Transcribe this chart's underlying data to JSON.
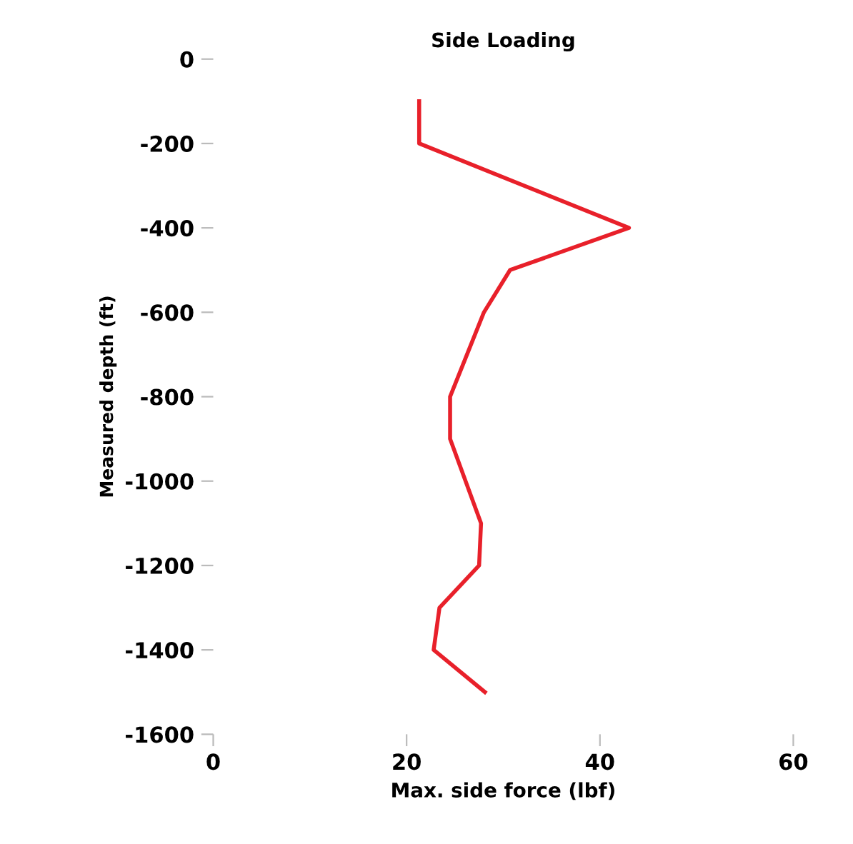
{
  "chart_data": {
    "type": "line",
    "title": "Side Loading",
    "xlabel": "Max. side force (lbf)",
    "ylabel": "Measured depth (ft)",
    "x": [
      21.3,
      21.3,
      43.0,
      30.7,
      28.0,
      24.5,
      24.5,
      27.7,
      27.5,
      23.4,
      22.8,
      28.1
    ],
    "series": [
      {
        "color": "#e8202a",
        "values": [
          -100,
          -200,
          -400,
          -500,
          -600,
          -800,
          -900,
          -1100,
          -1200,
          -1300,
          -1400,
          -1500
        ]
      }
    ],
    "xlim": [
      0,
      60
    ],
    "ylim": [
      -1600,
      0
    ],
    "xticks": [
      0,
      20,
      40,
      60
    ],
    "yticks": [
      0,
      -200,
      -400,
      -600,
      -800,
      -1000,
      -1200,
      -1400,
      -1600
    ],
    "grid": false,
    "legend": false,
    "marker": "none",
    "line_style": "solid"
  }
}
